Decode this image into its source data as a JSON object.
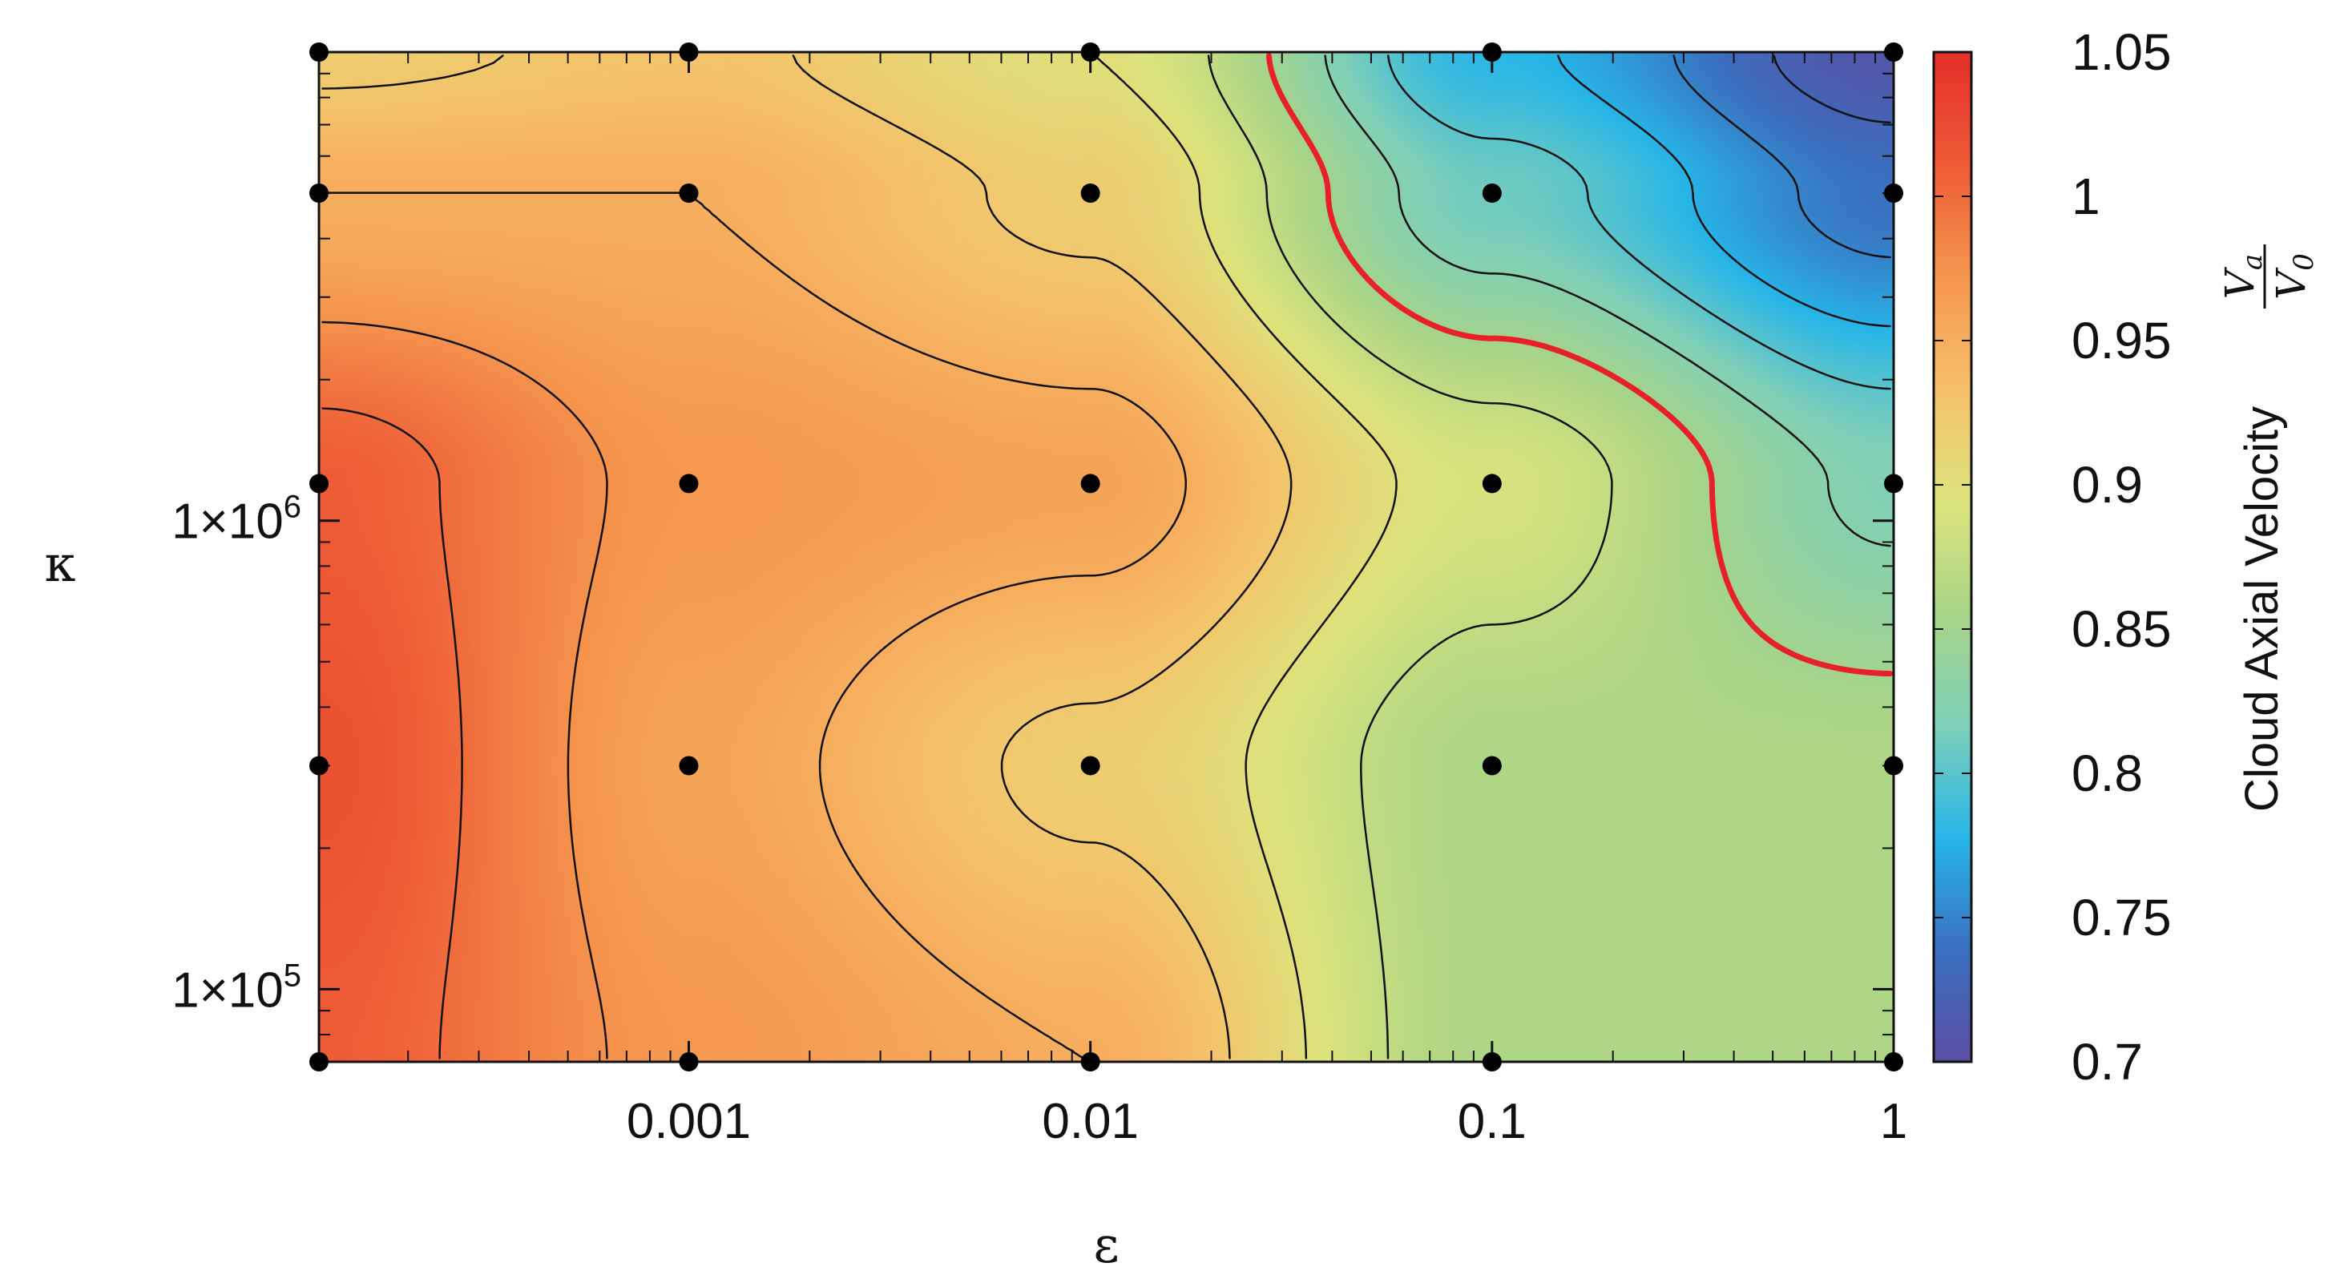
{
  "chart_data": {
    "type": "heatmap",
    "subtype": "filled-contour",
    "xlabel": "ε",
    "ylabel": "κ",
    "x_scale": "log",
    "y_scale": "log",
    "xlim": [
      0.00012,
      1
    ],
    "ylim": [
      70000,
      10000000
    ],
    "x_ticks": [
      {
        "value": 0.001,
        "label": "0.001"
      },
      {
        "value": 0.01,
        "label": "0.01"
      },
      {
        "value": 0.1,
        "label": "0.1"
      },
      {
        "value": 1,
        "label": "1"
      }
    ],
    "y_ticks": [
      {
        "value": 100000,
        "base": "1×10",
        "exp": "5"
      },
      {
        "value": 1000000,
        "base": "1×10",
        "exp": "6"
      }
    ],
    "colorbar": {
      "label": "Cloud Axial Velocity",
      "label_fraction": {
        "numerator": "V",
        "numerator_sub": "a",
        "denominator": "V",
        "denominator_sub": "0"
      },
      "min": 0.7,
      "max": 1.05,
      "ticks": [
        {
          "value": 1.05,
          "label": "1.05"
        },
        {
          "value": 1.0,
          "label": "1"
        },
        {
          "value": 0.95,
          "label": "0.95"
        },
        {
          "value": 0.9,
          "label": "0.9"
        },
        {
          "value": 0.85,
          "label": "0.85"
        },
        {
          "value": 0.8,
          "label": "0.8"
        },
        {
          "value": 0.75,
          "label": "0.75"
        },
        {
          "value": 0.7,
          "label": "0.7"
        }
      ],
      "colors": [
        "#5a4ea2",
        "#3b6fc0",
        "#27b6e8",
        "#7fcfb8",
        "#a8d488",
        "#dde47c",
        "#f6c06a",
        "#f5964e",
        "#ee5a36",
        "#e52d2a"
      ]
    },
    "x": [
      0.00012,
      0.001,
      0.01,
      0.1,
      1
    ],
    "y": [
      70000,
      300000,
      1200000,
      5000000,
      10000000
    ],
    "z": [
      [
        1.01,
        0.97,
        0.95,
        0.86,
        0.86
      ],
      [
        1.02,
        0.96,
        0.92,
        0.86,
        0.86
      ],
      [
        1.01,
        0.97,
        0.96,
        0.89,
        0.82
      ],
      [
        0.95,
        0.95,
        0.92,
        0.81,
        0.74
      ],
      [
        0.92,
        0.93,
        0.9,
        0.78,
        0.71
      ]
    ],
    "sample_points": [
      [
        0.00012,
        70000
      ],
      [
        0.001,
        70000
      ],
      [
        0.01,
        70000
      ],
      [
        0.1,
        70000
      ],
      [
        1,
        70000
      ],
      [
        0.00012,
        300000
      ],
      [
        0.001,
        300000
      ],
      [
        0.01,
        300000
      ],
      [
        0.1,
        300000
      ],
      [
        1,
        300000
      ],
      [
        0.00012,
        1200000
      ],
      [
        0.001,
        1200000
      ],
      [
        0.01,
        1200000
      ],
      [
        0.1,
        1200000
      ],
      [
        1,
        1200000
      ],
      [
        0.00012,
        5000000
      ],
      [
        0.001,
        5000000
      ],
      [
        0.01,
        5000000
      ],
      [
        0.1,
        5000000
      ],
      [
        1,
        5000000
      ],
      [
        0.00012,
        10000000
      ],
      [
        0.001,
        10000000
      ],
      [
        0.01,
        10000000
      ],
      [
        0.1,
        10000000
      ],
      [
        1,
        10000000
      ]
    ],
    "highlight_contour": {
      "color": "#e8202a"
    },
    "contour_color": "#111111",
    "grid": false,
    "legend": "none"
  }
}
